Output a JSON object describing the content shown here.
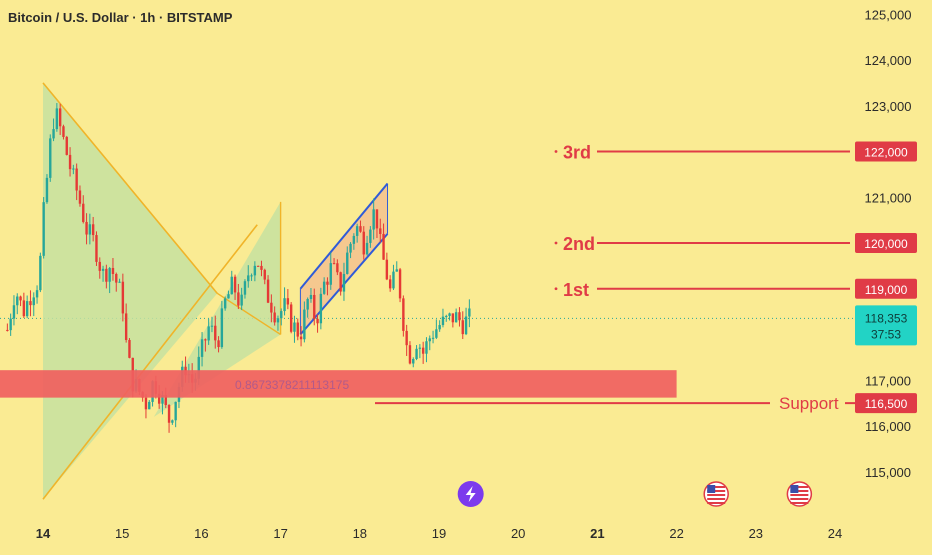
{
  "header": {
    "title": "Bitcoin / U.S. Dollar · 1h · BITSTAMP"
  },
  "colors": {
    "background": "#faeb93",
    "bull": "#26a69a",
    "bear": "#e53935",
    "level_red": "#e03b46",
    "zone_fill": "#f06060",
    "triangle_fill": "#c6e2a0",
    "triangle_line": "#f0b429",
    "channel_line": "#2f5bd8",
    "channel_fill": "#f2b18c",
    "price_badge": "#22d3c5"
  },
  "chart_data": {
    "type": "candlestick",
    "xlabel": "",
    "ylabel": "",
    "ylim": [
      114400,
      125400
    ],
    "x_ticks": [
      "14",
      "15",
      "16",
      "17",
      "18",
      "19",
      "20",
      "21",
      "22",
      "23",
      "24"
    ],
    "y_ticks": [
      "125,000",
      "124,000",
      "123,000",
      "121,000",
      "117,000",
      "116,000",
      "115,000"
    ],
    "current_price": {
      "value": "118,353",
      "countdown": "37:53",
      "level": 118353
    },
    "price_path": [
      [
        13.55,
        118100
      ],
      [
        13.65,
        119000
      ],
      [
        13.75,
        118500
      ],
      [
        13.85,
        118900
      ],
      [
        13.95,
        119200
      ],
      [
        14.0,
        120500
      ],
      [
        14.1,
        122300
      ],
      [
        14.15,
        122900
      ],
      [
        14.25,
        122300
      ],
      [
        14.35,
        121600
      ],
      [
        14.45,
        121000
      ],
      [
        14.55,
        120300
      ],
      [
        14.65,
        120000
      ],
      [
        14.75,
        119300
      ],
      [
        14.85,
        119500
      ],
      [
        15.0,
        118800
      ],
      [
        15.05,
        117800
      ],
      [
        15.12,
        117000
      ],
      [
        15.2,
        116800
      ],
      [
        15.3,
        116500
      ],
      [
        15.4,
        117000
      ],
      [
        15.5,
        116600
      ],
      [
        15.6,
        116100
      ],
      [
        15.7,
        116800
      ],
      [
        15.8,
        117300
      ],
      [
        15.9,
        116900
      ],
      [
        16.0,
        117600
      ],
      [
        16.1,
        118200
      ],
      [
        16.2,
        117800
      ],
      [
        16.3,
        118700
      ],
      [
        16.4,
        119100
      ],
      [
        16.5,
        118600
      ],
      [
        16.6,
        119400
      ],
      [
        16.7,
        119700
      ],
      [
        16.8,
        119000
      ],
      [
        16.95,
        118400
      ],
      [
        17.05,
        118600
      ],
      [
        17.15,
        118200
      ],
      [
        17.25,
        118000
      ],
      [
        17.35,
        118800
      ],
      [
        17.45,
        118300
      ],
      [
        17.55,
        119100
      ],
      [
        17.65,
        119500
      ],
      [
        17.75,
        119000
      ],
      [
        17.85,
        119800
      ],
      [
        17.95,
        120400
      ],
      [
        18.05,
        120000
      ],
      [
        18.15,
        120600
      ],
      [
        18.2,
        120700
      ],
      [
        18.27,
        119800
      ],
      [
        18.33,
        119400
      ],
      [
        18.4,
        118800
      ],
      [
        18.45,
        119500
      ],
      [
        18.52,
        118800
      ],
      [
        18.58,
        117800
      ],
      [
        18.65,
        117500
      ],
      [
        18.72,
        117900
      ],
      [
        18.8,
        117600
      ],
      [
        18.9,
        118000
      ],
      [
        19.0,
        118200
      ],
      [
        19.1,
        118300
      ],
      [
        19.2,
        118400
      ],
      [
        19.3,
        118250
      ],
      [
        19.4,
        118353
      ]
    ]
  },
  "levels": [
    {
      "label": "3rd",
      "price": "122,000",
      "value": 122000
    },
    {
      "label": "2nd",
      "price": "120,000",
      "value": 120000
    },
    {
      "label": "1st",
      "price": "119,000",
      "value": 119000
    },
    {
      "label": "Support",
      "price": "116,500",
      "value": 116500
    }
  ],
  "support_zone": {
    "label": "0.8673378211113175",
    "low": 116620,
    "high": 117220,
    "x_start": 13.5,
    "x_end": 22.0
  },
  "triangle_left": {
    "apex_x": 14.0,
    "top": 123500,
    "bottom": 114400,
    "right_x": 16.2,
    "right_y": 118900
  },
  "triangle_right": {
    "left_x": 15.4,
    "left_y": 116200,
    "right_x": 17.0,
    "top": 120900,
    "bottom": 118000
  },
  "channel": {
    "upper": [
      [
        17.25,
        119000
      ],
      [
        18.35,
        121300
      ]
    ],
    "lower": [
      [
        17.25,
        118000
      ],
      [
        18.35,
        120200
      ]
    ]
  },
  "events": [
    {
      "icon": "lightning-icon",
      "x": 19.4
    },
    {
      "icon": "us-flag-icon",
      "x": 22.5
    },
    {
      "icon": "us-flag-icon",
      "x": 23.55
    }
  ]
}
